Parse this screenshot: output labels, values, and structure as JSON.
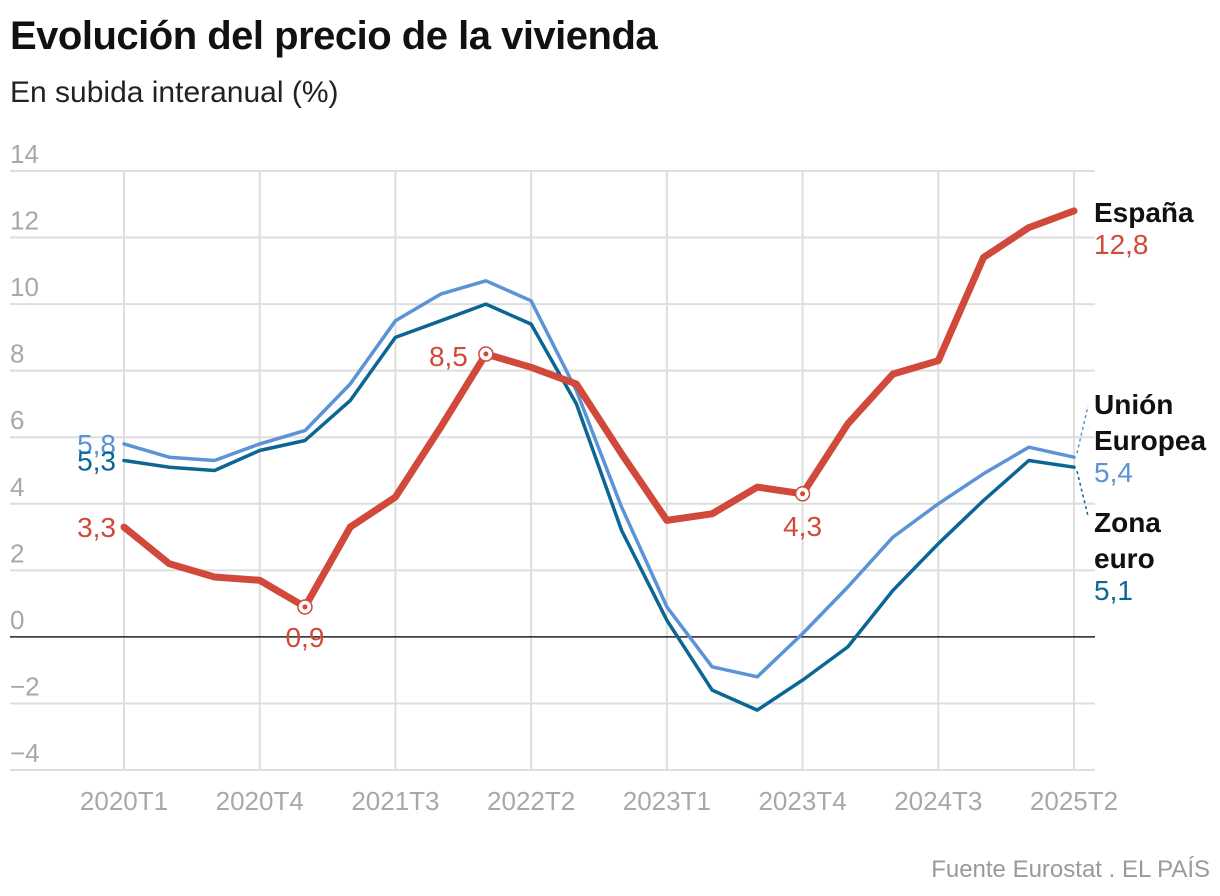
{
  "header": {
    "title": "Evolución del precio de la vivienda",
    "subtitle": "En subida interanual (%)"
  },
  "footer": {
    "source": "Fuente Eurostat . EL PAÍS"
  },
  "colors": {
    "espana": "#d0493a",
    "ue": "#5b93d6",
    "zona_euro": "#0b6693",
    "grid": "#dedede",
    "zero": "#222222",
    "tick": "#a8a8a8"
  },
  "chart_data": {
    "type": "line",
    "title": "Evolución del precio de la vivienda",
    "subtitle": "En subida interanual (%)",
    "xlabel": "",
    "ylabel": "",
    "ylim": [
      -4,
      14
    ],
    "yticks": [
      -4,
      -2,
      0,
      2,
      4,
      6,
      8,
      10,
      12,
      14
    ],
    "ytick_labels": [
      "−4",
      "−2",
      "0",
      "2",
      "4",
      "6",
      "8",
      "10",
      "12",
      "14"
    ],
    "x": [
      "2020T1",
      "2020T2",
      "2020T3",
      "2020T4",
      "2021T1",
      "2021T2",
      "2021T3",
      "2021T4",
      "2022T1",
      "2022T2",
      "2022T3",
      "2022T4",
      "2023T1",
      "2023T2",
      "2023T3",
      "2023T4",
      "2024T1",
      "2024T2",
      "2024T3",
      "2024T4",
      "2025T1",
      "2025T2"
    ],
    "xtick_labels": [
      "2020T1",
      "2020T4",
      "2021T3",
      "2022T2",
      "2023T1",
      "2023T4",
      "2024T3",
      "2025T2"
    ],
    "grid": true,
    "series": [
      {
        "key": "ue",
        "name": "Unión Europea",
        "name_lines": [
          "Unión",
          "Europea"
        ],
        "end_label": "5,4",
        "values": [
          5.8,
          5.4,
          5.3,
          5.8,
          6.2,
          7.6,
          9.5,
          10.3,
          10.7,
          10.1,
          7.4,
          3.9,
          0.9,
          -0.9,
          -1.2,
          0.1,
          1.5,
          3.0,
          4.0,
          4.9,
          5.7,
          5.4
        ]
      },
      {
        "key": "zona_euro",
        "name": "Zona euro",
        "name_lines": [
          "Zona",
          "euro"
        ],
        "end_label": "5,1",
        "values": [
          5.3,
          5.1,
          5.0,
          5.6,
          5.9,
          7.1,
          9.0,
          9.5,
          10.0,
          9.4,
          7.0,
          3.2,
          0.5,
          -1.6,
          -2.2,
          -1.3,
          -0.3,
          1.4,
          2.8,
          4.1,
          5.3,
          5.1
        ]
      },
      {
        "key": "espana",
        "name": "España",
        "name_lines": [
          "España"
        ],
        "end_label": "12,8",
        "values": [
          3.3,
          2.2,
          1.8,
          1.7,
          0.9,
          3.3,
          4.2,
          6.3,
          8.5,
          8.1,
          7.6,
          5.5,
          3.5,
          3.7,
          4.5,
          4.3,
          6.4,
          7.9,
          8.3,
          11.4,
          12.3,
          12.8
        ]
      }
    ],
    "annotations": [
      {
        "series": "ue",
        "index": 0,
        "label": "5,8",
        "marker": false
      },
      {
        "series": "zona_euro",
        "index": 0,
        "label": "5,3",
        "marker": false
      },
      {
        "series": "espana",
        "index": 0,
        "label": "3,3",
        "marker": false
      },
      {
        "series": "espana",
        "index": 4,
        "label": "0,9",
        "marker": true
      },
      {
        "series": "espana",
        "index": 8,
        "label": "8,5",
        "marker": true
      },
      {
        "series": "espana",
        "index": 15,
        "label": "4,3",
        "marker": true
      }
    ]
  }
}
